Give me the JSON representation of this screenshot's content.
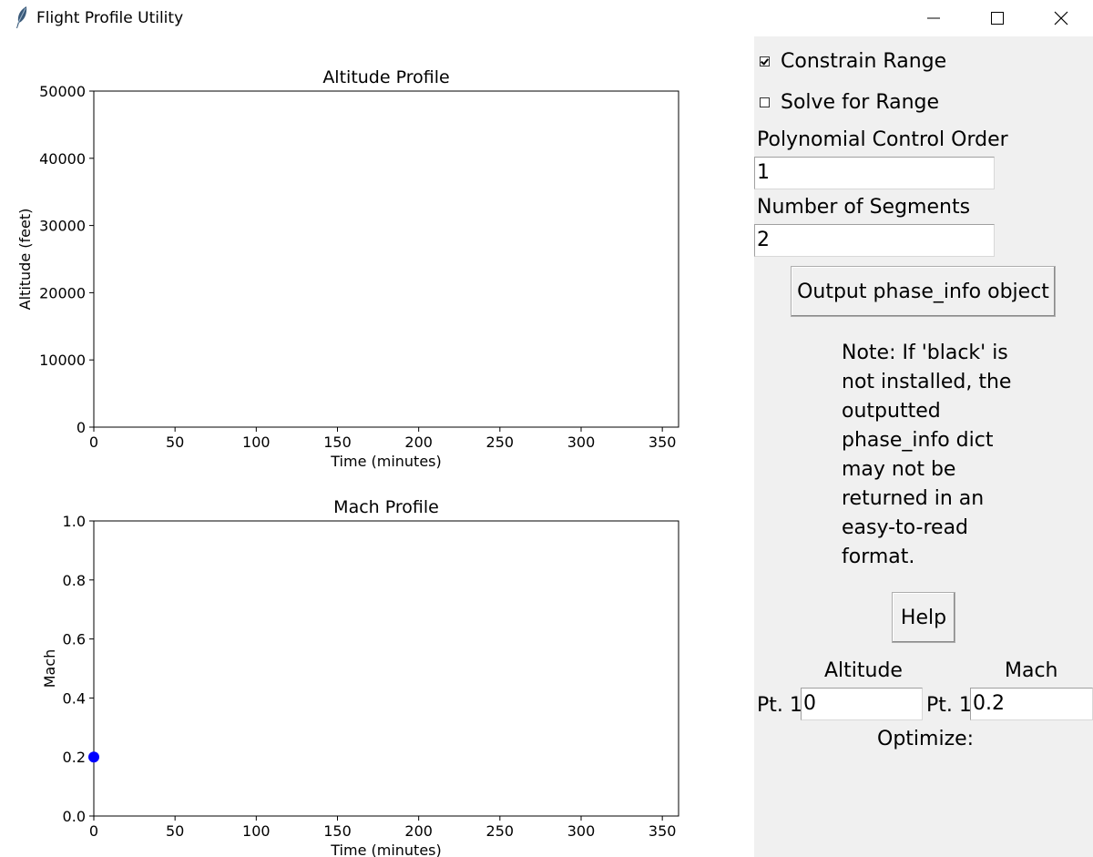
{
  "window": {
    "title": "Flight Profile Utility",
    "controls": [
      "minimize",
      "maximize",
      "close"
    ]
  },
  "charts": {
    "altitude": {
      "title": "Altitude Profile",
      "xlabel": "Time (minutes)",
      "ylabel": "Altitude (feet)"
    },
    "mach": {
      "title": "Mach Profile",
      "xlabel": "Time (minutes)",
      "ylabel": "Mach"
    }
  },
  "chart_data": [
    {
      "type": "line",
      "title": "Altitude Profile",
      "xlabel": "Time (minutes)",
      "ylabel": "Altitude (feet)",
      "xlim": [
        0,
        360
      ],
      "ylim": [
        0,
        50000
      ],
      "xticks": [
        0,
        50,
        100,
        150,
        200,
        250,
        300,
        350
      ],
      "yticks": [
        0,
        10000,
        20000,
        30000,
        40000,
        50000
      ],
      "series": [
        {
          "x": [],
          "y": [],
          "color": "#0000ff"
        }
      ]
    },
    {
      "type": "scatter",
      "title": "Mach Profile",
      "xlabel": "Time (minutes)",
      "ylabel": "Mach",
      "xlim": [
        0,
        360
      ],
      "ylim": [
        0,
        1.0
      ],
      "xticks": [
        0,
        50,
        100,
        150,
        200,
        250,
        300,
        350
      ],
      "yticks": [
        0.0,
        0.2,
        0.4,
        0.6,
        0.8,
        1.0
      ],
      "series": [
        {
          "x": [
            0
          ],
          "y": [
            0.2
          ],
          "color": "#0000ff"
        }
      ]
    }
  ],
  "controls": {
    "constrain_range": {
      "label": "Constrain Range",
      "checked": true
    },
    "solve_for_range": {
      "label": "Solve for Range",
      "checked": false
    },
    "polynomial_order": {
      "label": "Polynomial Control Order",
      "value": "1"
    },
    "num_segments": {
      "label": "Number of Segments",
      "value": "2"
    },
    "output_button": "Output phase_info object",
    "note": "Note: If 'black' is\nnot installed, the\noutputted\nphase_info dict\nmay not be\nreturned in an\neasy-to-read\nformat.",
    "help_button": "Help",
    "altitude_header": "Altitude",
    "mach_header": "Mach",
    "pt1_alt_label": "Pt. 1",
    "pt1_alt_value": "0",
    "pt1_mach_label": "Pt. 1",
    "pt1_mach_value": "0.2",
    "optimize_label": "Optimize:"
  }
}
